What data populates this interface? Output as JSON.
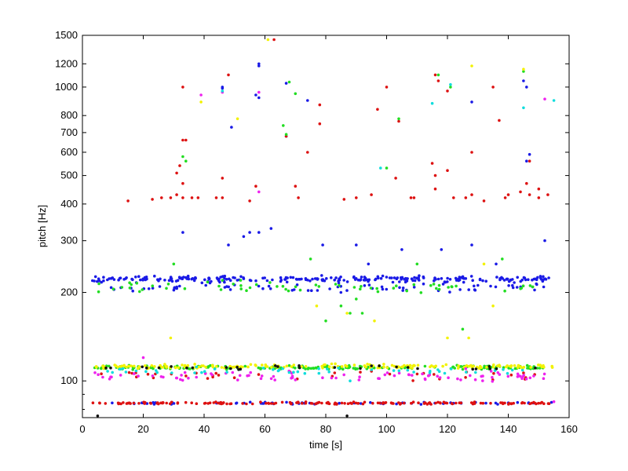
{
  "chart_data": {
    "type": "scatter",
    "title": "",
    "xlabel": "time [s]",
    "ylabel": "pitch [Hz]",
    "xlim": [
      0,
      160
    ],
    "ylim": [
      75,
      1500
    ],
    "yscale": "log",
    "grid": false,
    "xticks": [
      0,
      20,
      40,
      60,
      80,
      100,
      120,
      140,
      160
    ],
    "yticks": [
      100,
      200,
      300,
      400,
      500,
      600,
      700,
      800,
      1000,
      1200,
      1500
    ],
    "y_minor_ticks": [
      90,
      80
    ],
    "series": [
      {
        "name": "blue",
        "color": "#1a1ae6",
        "bands": [
          {
            "center": 222,
            "t0": 3,
            "t1": 155,
            "n": 260,
            "spread": 0.012
          },
          {
            "center": 208,
            "t0": 4,
            "t1": 154,
            "n": 70,
            "spread": 0.015
          },
          {
            "center": 84,
            "t0": 3,
            "t1": 155,
            "n": 70,
            "spread": 0.004
          }
        ],
        "outliers": [
          [
            33,
            320
          ],
          [
            46,
            1000
          ],
          [
            46,
            990
          ],
          [
            48,
            290
          ],
          [
            53,
            310
          ],
          [
            55,
            320
          ],
          [
            58,
            1200
          ],
          [
            58,
            1180
          ],
          [
            57,
            940
          ],
          [
            58,
            920
          ],
          [
            62,
            330
          ],
          [
            58,
            320
          ],
          [
            67,
            1030
          ],
          [
            74,
            900
          ],
          [
            79,
            290
          ],
          [
            90,
            290
          ],
          [
            94,
            250
          ],
          [
            105,
            280
          ],
          [
            118,
            280
          ],
          [
            128,
            290
          ],
          [
            128,
            890
          ],
          [
            136,
            250
          ],
          [
            145,
            1050
          ],
          [
            146,
            1000
          ],
          [
            146,
            560
          ],
          [
            147,
            590
          ],
          [
            152,
            300
          ],
          [
            49,
            730
          ],
          [
            67,
            680
          ]
        ]
      },
      {
        "name": "red",
        "color": "#dd1111",
        "bands": [
          {
            "center": 84,
            "t0": 3,
            "t1": 155,
            "n": 170,
            "spread": 0.004
          },
          {
            "center": 104,
            "t0": 5,
            "t1": 152,
            "n": 40,
            "spread": 0.02
          }
        ],
        "outliers": [
          [
            15,
            410
          ],
          [
            23,
            415
          ],
          [
            26,
            420
          ],
          [
            29,
            420
          ],
          [
            31,
            430
          ],
          [
            31,
            510
          ],
          [
            32,
            540
          ],
          [
            33,
            470
          ],
          [
            33,
            420
          ],
          [
            33,
            660
          ],
          [
            34,
            660
          ],
          [
            33,
            1000
          ],
          [
            36,
            420
          ],
          [
            38,
            420
          ],
          [
            44,
            420
          ],
          [
            46,
            420
          ],
          [
            46,
            490
          ],
          [
            48,
            1100
          ],
          [
            55,
            410
          ],
          [
            57,
            460
          ],
          [
            67,
            680
          ],
          [
            70,
            460
          ],
          [
            71,
            420
          ],
          [
            74,
            600
          ],
          [
            78,
            750
          ],
          [
            78,
            870
          ],
          [
            86,
            415
          ],
          [
            90,
            420
          ],
          [
            95,
            430
          ],
          [
            97,
            840
          ],
          [
            100,
            1000
          ],
          [
            103,
            490
          ],
          [
            104,
            765
          ],
          [
            108,
            420
          ],
          [
            109,
            420
          ],
          [
            115,
            550
          ],
          [
            116,
            500
          ],
          [
            116,
            450
          ],
          [
            116,
            1100
          ],
          [
            117,
            1050
          ],
          [
            120,
            520
          ],
          [
            122,
            420
          ],
          [
            126,
            420
          ],
          [
            128,
            600
          ],
          [
            128,
            430
          ],
          [
            132,
            410
          ],
          [
            135,
            1000
          ],
          [
            137,
            770
          ],
          [
            140,
            430
          ],
          [
            144,
            440
          ],
          [
            146,
            470
          ],
          [
            147,
            560
          ],
          [
            147,
            430
          ],
          [
            150,
            450
          ],
          [
            153,
            430
          ],
          [
            139,
            420
          ],
          [
            150,
            420
          ],
          [
            63,
            1450
          ],
          [
            120,
            970
          ]
        ]
      },
      {
        "name": "green",
        "color": "#22dd22",
        "bands": [
          {
            "center": 111,
            "t0": 3,
            "t1": 155,
            "n": 190,
            "spread": 0.008
          },
          {
            "center": 208,
            "t0": 5,
            "t1": 154,
            "n": 60,
            "spread": 0.02
          }
        ],
        "outliers": [
          [
            30,
            250
          ],
          [
            34,
            560
          ],
          [
            33,
            580
          ],
          [
            46,
            220
          ],
          [
            52,
            220
          ],
          [
            66,
            740
          ],
          [
            67,
            690
          ],
          [
            68,
            1040
          ],
          [
            70,
            950
          ],
          [
            75,
            260
          ],
          [
            80,
            160
          ],
          [
            88,
            170
          ],
          [
            92,
            170
          ],
          [
            100,
            530
          ],
          [
            104,
            780
          ],
          [
            110,
            250
          ],
          [
            117,
            1100
          ],
          [
            121,
            1000
          ],
          [
            125,
            150
          ],
          [
            138,
            260
          ],
          [
            145,
            1130
          ],
          [
            85,
            180
          ],
          [
            90,
            190
          ]
        ]
      },
      {
        "name": "yellow",
        "color": "#f2f200",
        "bands": [
          {
            "center": 112,
            "t0": 3,
            "t1": 155,
            "n": 180,
            "spread": 0.008
          }
        ],
        "outliers": [
          [
            61,
            1450
          ],
          [
            51,
            780
          ],
          [
            39,
            890
          ],
          [
            128,
            1180
          ],
          [
            145,
            1150
          ],
          [
            96,
            160
          ],
          [
            127,
            140
          ],
          [
            135,
            180
          ],
          [
            132,
            250
          ],
          [
            29,
            140
          ],
          [
            77,
            180
          ],
          [
            87,
            170
          ],
          [
            120,
            140
          ]
        ]
      },
      {
        "name": "magenta",
        "color": "#ee22ee",
        "bands": [
          {
            "center": 104,
            "t0": 4,
            "t1": 152,
            "n": 90,
            "spread": 0.02
          }
        ],
        "outliers": [
          [
            39,
            940
          ],
          [
            46,
            960
          ],
          [
            58,
            960
          ],
          [
            58,
            440
          ],
          [
            152,
            910
          ],
          [
            155,
            85
          ],
          [
            126,
            110
          ],
          [
            20,
            120
          ]
        ]
      },
      {
        "name": "cyan",
        "color": "#11dddd",
        "bands": [
          {
            "center": 108,
            "t0": 5,
            "t1": 150,
            "n": 50,
            "spread": 0.015
          }
        ],
        "outliers": [
          [
            115,
            880
          ],
          [
            145,
            850
          ],
          [
            98,
            530
          ],
          [
            88,
            100
          ],
          [
            121,
            1020
          ],
          [
            46,
            970
          ],
          [
            155,
            900
          ]
        ]
      },
      {
        "name": "black",
        "color": "#111111",
        "bands": [
          {
            "center": 111,
            "t0": 5,
            "t1": 152,
            "n": 30,
            "spread": 0.008
          }
        ],
        "outliers": [
          [
            87,
            76
          ],
          [
            5,
            76
          ]
        ]
      }
    ]
  }
}
